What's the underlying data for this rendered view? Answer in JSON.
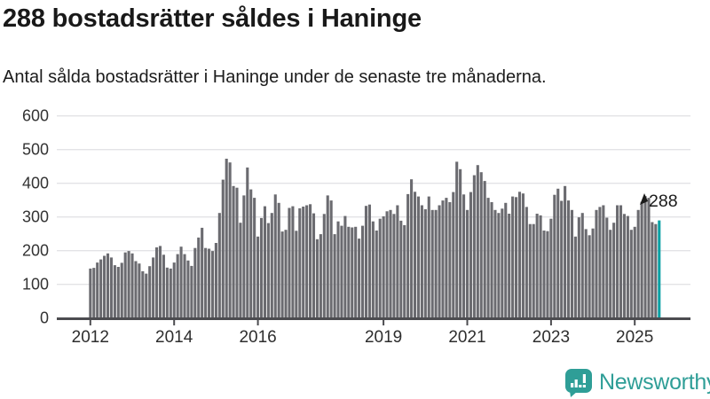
{
  "header": {
    "title": "288 bostadsrätter såldes i Haninge",
    "subtitle": "Antal sålda bostadsrätter i Haninge under de senaste tre månaderna."
  },
  "chart_data": {
    "type": "bar",
    "title": "288 bostadsrätter såldes i Haninge",
    "xlabel": "",
    "ylabel": "",
    "ylim": [
      0,
      600
    ],
    "y_ticks": [
      0,
      100,
      200,
      300,
      400,
      500,
      600
    ],
    "grid": true,
    "cadence": "monthly",
    "x_start": "2012-01",
    "x_end": "2025-08",
    "x_tick_years": [
      2012,
      2014,
      2016,
      2019,
      2021,
      2023,
      2025
    ],
    "x_tick_labels": [
      "2012",
      "2014",
      "2016",
      "2019",
      "2021",
      "2023",
      "2025"
    ],
    "bar_color": "#6b6b70",
    "highlight_color": "#0aa1a4",
    "highlight_last": true,
    "highlight_value": 288,
    "highlight_value_label": "288",
    "values": [
      145,
      147,
      163,
      172,
      183,
      190,
      178,
      155,
      150,
      162,
      193,
      197,
      190,
      167,
      160,
      137,
      130,
      152,
      178,
      208,
      212,
      186,
      148,
      145,
      163,
      188,
      210,
      188,
      169,
      153,
      206,
      237,
      266,
      206,
      204,
      197,
      221,
      310,
      409,
      471,
      460,
      390,
      385,
      281,
      362,
      445,
      380,
      355,
      240,
      295,
      330,
      280,
      310,
      365,
      340,
      255,
      260,
      325,
      330,
      257,
      324,
      329,
      333,
      336,
      309,
      232,
      247,
      307,
      362,
      347,
      247,
      285,
      272,
      301,
      269,
      267,
      269,
      234,
      272,
      331,
      335,
      285,
      258,
      293,
      300,
      315,
      319,
      307,
      333,
      287,
      274,
      366,
      410,
      373,
      359,
      333,
      321,
      359,
      319,
      319,
      333,
      347,
      355,
      342,
      372,
      462,
      440,
      365,
      319,
      372,
      422,
      452,
      431,
      405,
      355,
      342,
      319,
      310,
      323,
      340,
      308,
      359,
      357,
      373,
      368,
      328,
      277,
      277,
      308,
      303,
      258,
      256,
      293,
      364,
      382,
      346,
      390,
      347,
      319,
      240,
      297,
      310,
      262,
      244,
      264,
      319,
      328,
      333,
      296,
      260,
      281,
      333,
      333,
      307,
      301,
      260,
      269,
      319,
      343,
      360,
      355,
      283,
      277,
      288
    ]
  },
  "annotation": {
    "label": "288"
  },
  "footer": {
    "brand": "Newsworthy"
  },
  "colors": {
    "title_text": "#191919",
    "axis_text": "#2e2e2e",
    "gridline": "#e3e3e6",
    "axis_line": "#4c4c50",
    "bar_gray": "#6b6b70",
    "bar_teal": "#0aa1a4",
    "brand_teal": "#2f9e97"
  }
}
